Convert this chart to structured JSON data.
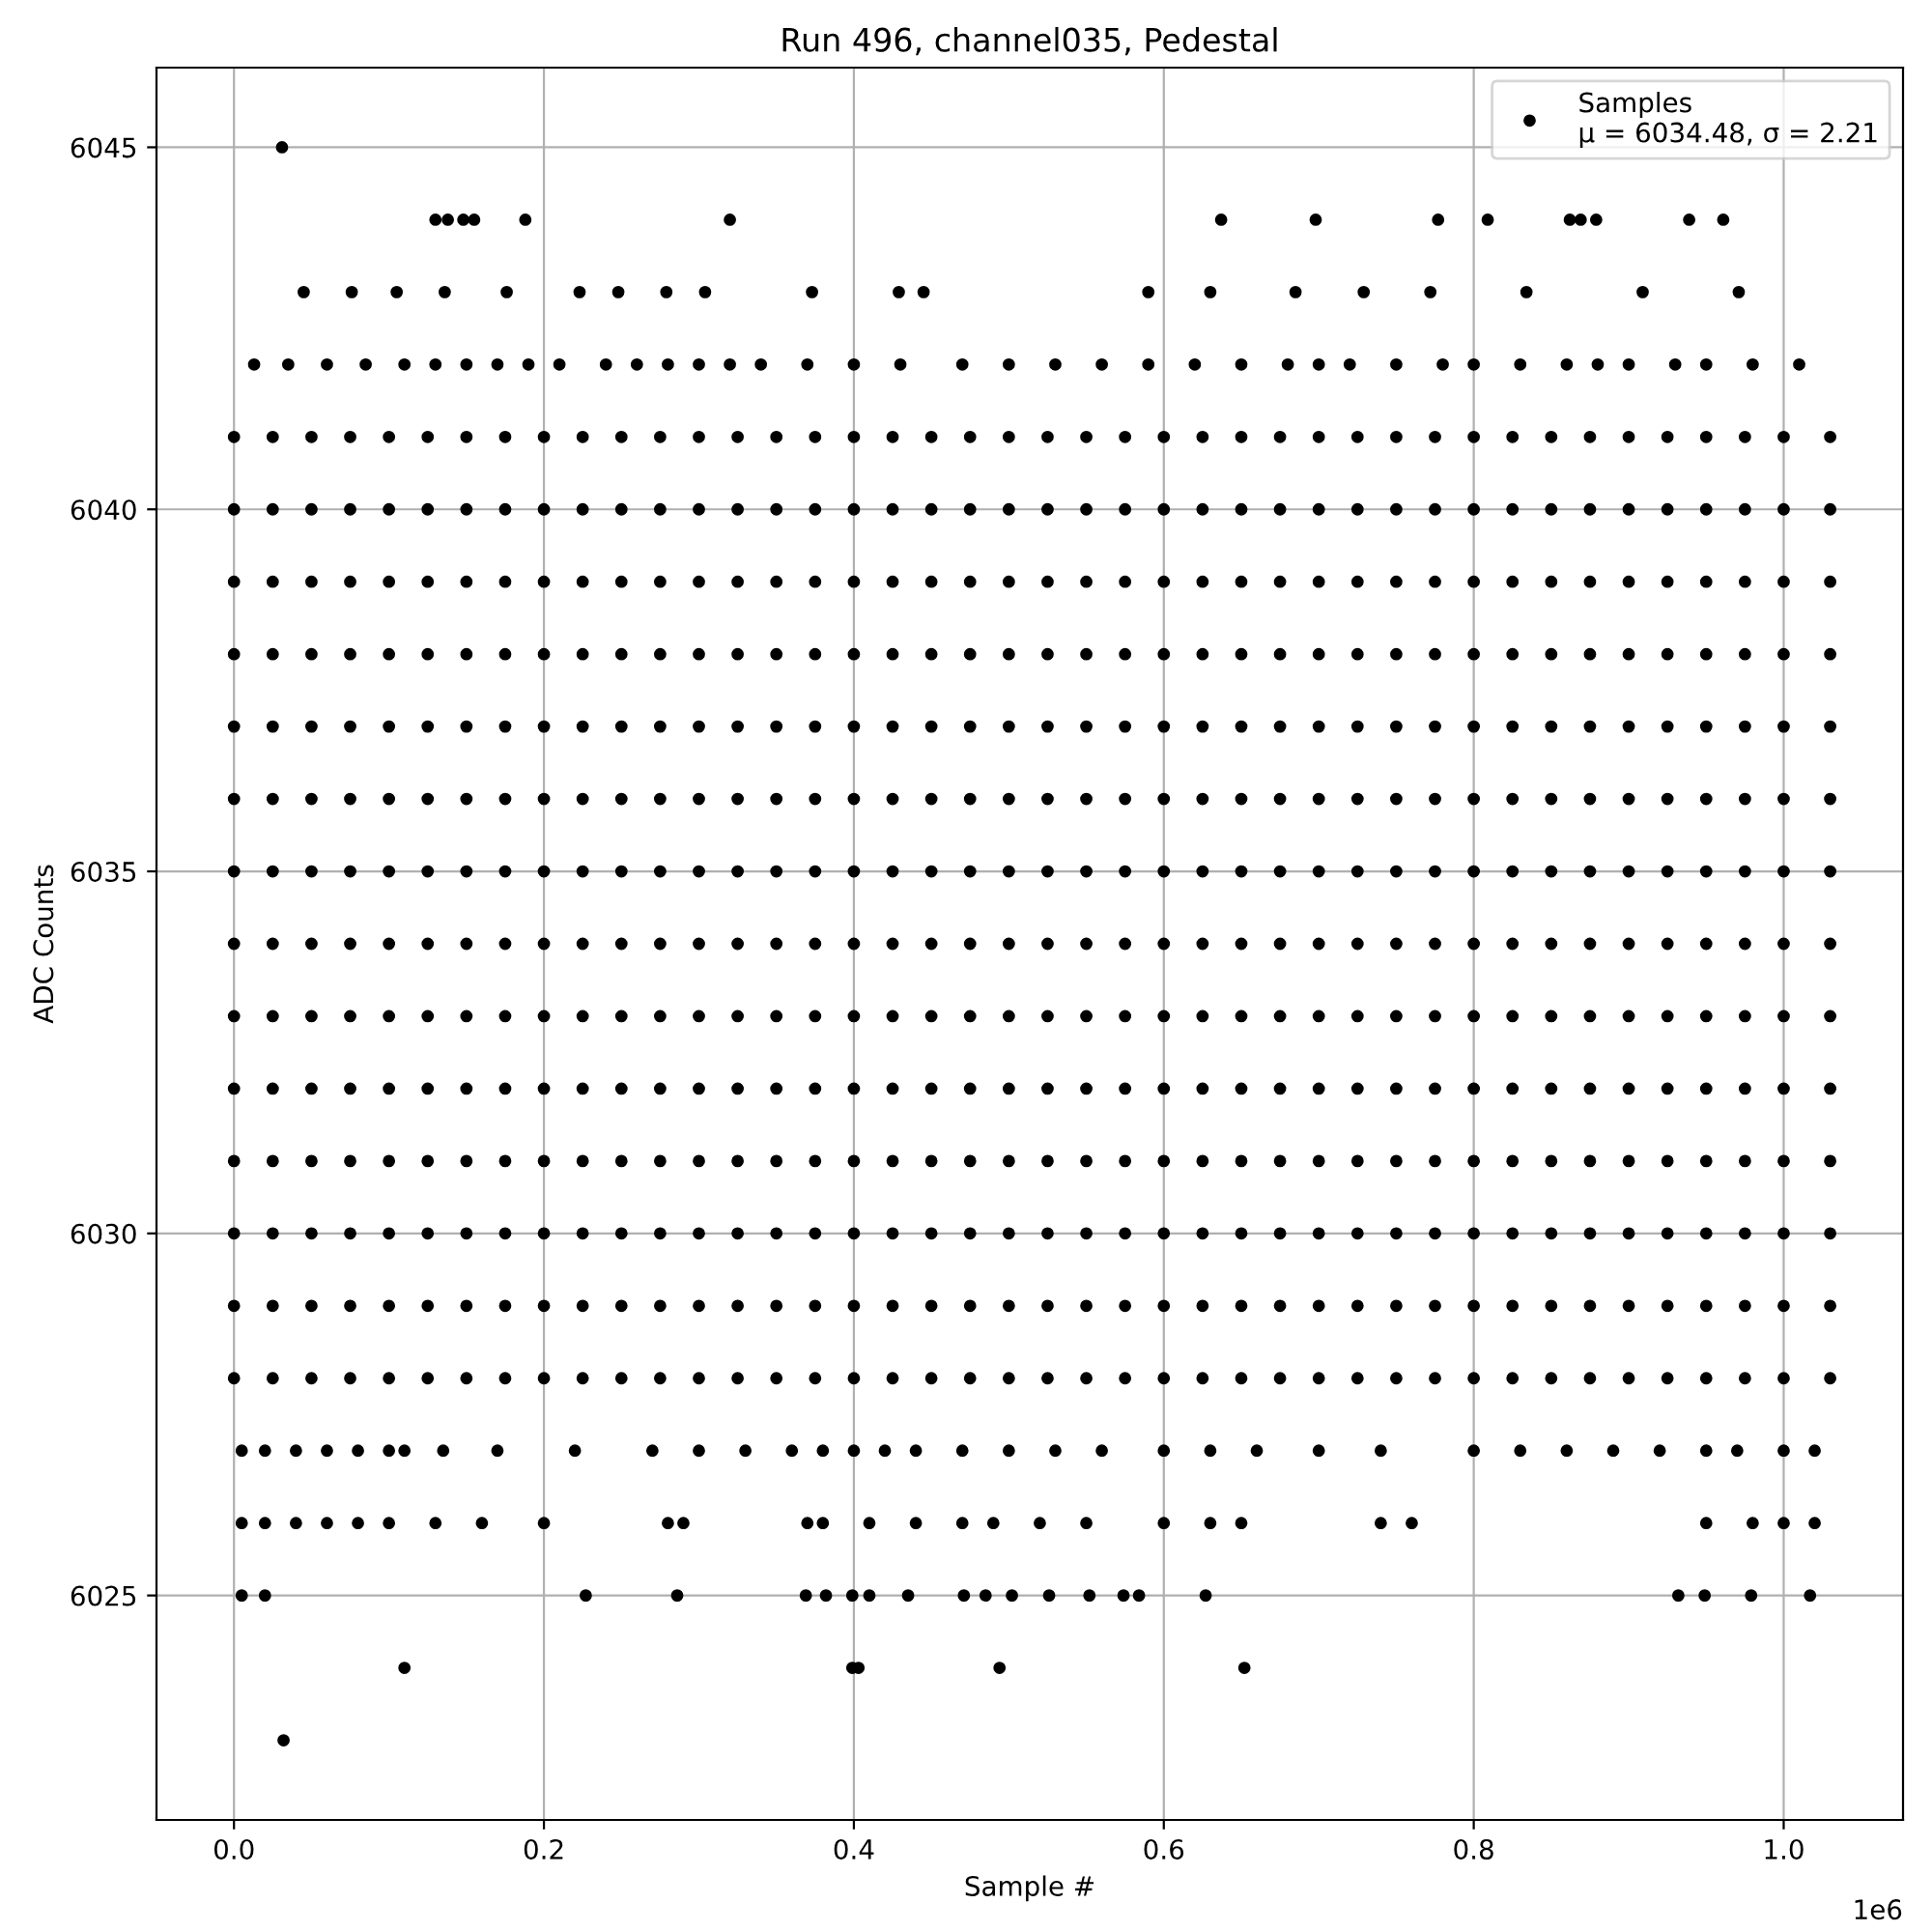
{
  "chart_data": {
    "type": "scatter",
    "title": "Run 496, channel035, Pedestal",
    "xlabel": "Sample #",
    "ylabel": "ADC Counts",
    "annotations": [
      "1e6"
    ],
    "x": [
      0,
      0.025,
      0.05,
      0.075,
      0.1,
      0.125,
      0.15,
      0.175,
      0.2,
      0.225,
      0.25,
      0.275,
      0.3,
      0.325,
      0.35,
      0.375,
      0.4,
      0.425,
      0.45,
      0.475,
      0.5,
      0.525,
      0.55,
      0.575,
      0.6,
      0.625,
      0.65,
      0.675,
      0.7,
      0.725,
      0.75,
      0.775,
      0.8,
      0.825,
      0.85,
      0.875,
      0.9,
      0.925,
      0.95,
      0.975,
      1.0,
      1.03
    ],
    "series": [
      {
        "name": "Samples\nμ = 6034.48, σ = 2.21",
        "color": "#000000",
        "values": [
          6036,
          6036,
          6036,
          6036,
          6036,
          6036,
          6036,
          6036,
          6036,
          6036,
          6036,
          6036,
          6036,
          6036,
          6036,
          6036,
          6036,
          6036,
          6036,
          6036,
          6036,
          6036,
          6036,
          6036,
          6036,
          6036,
          6036,
          6036,
          6036,
          6036,
          6036,
          6036,
          6036,
          6036,
          6036,
          6036,
          6036,
          6036,
          6036,
          6036,
          6036,
          6036
        ]
      },
      {
        "color": "#000000",
        "values": [
          6028,
          6028,
          6028,
          6028,
          6028,
          6028,
          6028,
          6028,
          6028,
          6028,
          6028,
          6028,
          6028,
          6028,
          6028,
          6028,
          6028,
          6028,
          6028,
          6028,
          6028,
          6028,
          6028,
          6028,
          6028,
          6028,
          6028,
          6028,
          6028,
          6028,
          6028,
          6028,
          6028,
          6028,
          6028,
          6028,
          6028,
          6028,
          6028,
          6028,
          6028,
          6028
        ]
      },
      {
        "color": "#000000",
        "values": [
          6029,
          6029,
          6029,
          6029,
          6029,
          6029,
          6029,
          6029,
          6029,
          6029,
          6029,
          6029,
          6029,
          6029,
          6029,
          6029,
          6029,
          6029,
          6029,
          6029,
          6029,
          6029,
          6029,
          6029,
          6029,
          6029,
          6029,
          6029,
          6029,
          6029,
          6029,
          6029,
          6029,
          6029,
          6029,
          6029,
          6029,
          6029,
          6029,
          6029,
          6029,
          6029
        ]
      },
      {
        "color": "#000000",
        "values": [
          6030,
          6030,
          6030,
          6030,
          6030,
          6030,
          6030,
          6030,
          6030,
          6030,
          6030,
          6030,
          6030,
          6030,
          6030,
          6030,
          6030,
          6030,
          6030,
          6030,
          6030,
          6030,
          6030,
          6030,
          6030,
          6030,
          6030,
          6030,
          6030,
          6030,
          6030,
          6030,
          6030,
          6030,
          6030,
          6030,
          6030,
          6030,
          6030,
          6030,
          6030,
          6030
        ]
      },
      {
        "color": "#000000",
        "values": [
          6031,
          6031,
          6031,
          6031,
          6031,
          6031,
          6031,
          6031,
          6031,
          6031,
          6031,
          6031,
          6031,
          6031,
          6031,
          6031,
          6031,
          6031,
          6031,
          6031,
          6031,
          6031,
          6031,
          6031,
          6031,
          6031,
          6031,
          6031,
          6031,
          6031,
          6031,
          6031,
          6031,
          6031,
          6031,
          6031,
          6031,
          6031,
          6031,
          6031,
          6031,
          6031
        ]
      },
      {
        "color": "#000000",
        "values": [
          6032,
          6032,
          6032,
          6032,
          6032,
          6032,
          6032,
          6032,
          6032,
          6032,
          6032,
          6032,
          6032,
          6032,
          6032,
          6032,
          6032,
          6032,
          6032,
          6032,
          6032,
          6032,
          6032,
          6032,
          6032,
          6032,
          6032,
          6032,
          6032,
          6032,
          6032,
          6032,
          6032,
          6032,
          6032,
          6032,
          6032,
          6032,
          6032,
          6032,
          6032,
          6032
        ]
      },
      {
        "color": "#000000",
        "values": [
          6033,
          6033,
          6033,
          6033,
          6033,
          6033,
          6033,
          6033,
          6033,
          6033,
          6033,
          6033,
          6033,
          6033,
          6033,
          6033,
          6033,
          6033,
          6033,
          6033,
          6033,
          6033,
          6033,
          6033,
          6033,
          6033,
          6033,
          6033,
          6033,
          6033,
          6033,
          6033,
          6033,
          6033,
          6033,
          6033,
          6033,
          6033,
          6033,
          6033,
          6033,
          6033
        ]
      },
      {
        "color": "#000000",
        "values": [
          6034,
          6034,
          6034,
          6034,
          6034,
          6034,
          6034,
          6034,
          6034,
          6034,
          6034,
          6034,
          6034,
          6034,
          6034,
          6034,
          6034,
          6034,
          6034,
          6034,
          6034,
          6034,
          6034,
          6034,
          6034,
          6034,
          6034,
          6034,
          6034,
          6034,
          6034,
          6034,
          6034,
          6034,
          6034,
          6034,
          6034,
          6034,
          6034,
          6034,
          6034,
          6034
        ]
      },
      {
        "color": "#000000",
        "values": [
          6035,
          6035,
          6035,
          6035,
          6035,
          6035,
          6035,
          6035,
          6035,
          6035,
          6035,
          6035,
          6035,
          6035,
          6035,
          6035,
          6035,
          6035,
          6035,
          6035,
          6035,
          6035,
          6035,
          6035,
          6035,
          6035,
          6035,
          6035,
          6035,
          6035,
          6035,
          6035,
          6035,
          6035,
          6035,
          6035,
          6035,
          6035,
          6035,
          6035,
          6035,
          6035
        ]
      },
      {
        "color": "#000000",
        "values": [
          6037,
          6037,
          6037,
          6037,
          6037,
          6037,
          6037,
          6037,
          6037,
          6037,
          6037,
          6037,
          6037,
          6037,
          6037,
          6037,
          6037,
          6037,
          6037,
          6037,
          6037,
          6037,
          6037,
          6037,
          6037,
          6037,
          6037,
          6037,
          6037,
          6037,
          6037,
          6037,
          6037,
          6037,
          6037,
          6037,
          6037,
          6037,
          6037,
          6037,
          6037,
          6037
        ]
      },
      {
        "color": "#000000",
        "values": [
          6038,
          6038,
          6038,
          6038,
          6038,
          6038,
          6038,
          6038,
          6038,
          6038,
          6038,
          6038,
          6038,
          6038,
          6038,
          6038,
          6038,
          6038,
          6038,
          6038,
          6038,
          6038,
          6038,
          6038,
          6038,
          6038,
          6038,
          6038,
          6038,
          6038,
          6038,
          6038,
          6038,
          6038,
          6038,
          6038,
          6038,
          6038,
          6038,
          6038,
          6038,
          6038
        ]
      },
      {
        "color": "#000000",
        "values": [
          6039,
          6039,
          6039,
          6039,
          6039,
          6039,
          6039,
          6039,
          6039,
          6039,
          6039,
          6039,
          6039,
          6039,
          6039,
          6039,
          6039,
          6039,
          6039,
          6039,
          6039,
          6039,
          6039,
          6039,
          6039,
          6039,
          6039,
          6039,
          6039,
          6039,
          6039,
          6039,
          6039,
          6039,
          6039,
          6039,
          6039,
          6039,
          6039,
          6039,
          6039,
          6039
        ]
      },
      {
        "color": "#000000",
        "values": [
          6040,
          6040,
          6040,
          6040,
          6040,
          6040,
          6040,
          6040,
          6040,
          6040,
          6040,
          6040,
          6040,
          6040,
          6040,
          6040,
          6040,
          6040,
          6040,
          6040,
          6040,
          6040,
          6040,
          6040,
          6040,
          6040,
          6040,
          6040,
          6040,
          6040,
          6040,
          6040,
          6040,
          6040,
          6040,
          6040,
          6040,
          6040,
          6040,
          6040,
          6040,
          6040
        ]
      },
      {
        "color": "#000000",
        "values": [
          6041,
          6041,
          6041,
          6041,
          6041,
          6041,
          6041,
          6041,
          6041,
          6041,
          6041,
          6041,
          6041,
          6041,
          6041,
          6041,
          6041,
          6041,
          6041,
          6041,
          6041,
          6041,
          6041,
          6041,
          6041,
          6041,
          6041,
          6041,
          6041,
          6041,
          6041,
          6041,
          6041,
          6041,
          6041,
          6041,
          6041,
          6041,
          6041,
          6041,
          6041,
          6041
        ]
      },
      {
        "color": "#000000",
        "x": [
          0.013,
          0.035,
          0.06,
          0.085,
          0.11,
          0.13,
          0.15,
          0.17,
          0.19,
          0.21,
          0.24,
          0.26,
          0.28,
          0.3,
          0.32,
          0.34,
          0.37,
          0.4,
          0.43,
          0.47,
          0.5,
          0.53,
          0.56,
          0.59,
          0.62,
          0.65,
          0.68,
          0.7,
          0.72,
          0.75,
          0.78,
          0.8,
          0.83,
          0.86,
          0.88,
          0.9,
          0.93,
          0.95,
          0.98,
          1.01,
          0.045,
          0.076,
          0.105,
          0.136,
          0.176,
          0.223,
          0.248,
          0.279,
          0.304,
          0.373,
          0.429,
          0.445,
          0.59,
          0.63,
          0.685,
          0.729,
          0.772,
          0.834,
          0.909,
          0.971,
          0.13,
          0.138,
          0.148,
          0.155,
          0.188,
          0.32,
          0.637,
          0.698,
          0.777,
          0.809,
          0.862,
          0.869,
          0.879,
          0.939,
          0.961,
          0.031
        ],
        "values": [
          6042,
          6042,
          6042,
          6042,
          6042,
          6042,
          6042,
          6042,
          6042,
          6042,
          6042,
          6042,
          6042,
          6042,
          6042,
          6042,
          6042,
          6042,
          6042,
          6042,
          6042,
          6042,
          6042,
          6042,
          6042,
          6042,
          6042,
          6042,
          6042,
          6042,
          6042,
          6042,
          6042,
          6042,
          6042,
          6042,
          6042,
          6042,
          6042,
          6042,
          6043,
          6043,
          6043,
          6043,
          6043,
          6043,
          6043,
          6043,
          6043,
          6043,
          6043,
          6043,
          6043,
          6043,
          6043,
          6043,
          6043,
          6043,
          6043,
          6043,
          6044,
          6044,
          6044,
          6044,
          6044,
          6044,
          6044,
          6044,
          6044,
          6044,
          6044,
          6044,
          6044,
          6044,
          6044,
          6045
        ]
      },
      {
        "color": "#000000",
        "x": [
          0.005,
          0.02,
          0.04,
          0.06,
          0.08,
          0.1,
          0.11,
          0.135,
          0.17,
          0.22,
          0.27,
          0.3,
          0.33,
          0.36,
          0.38,
          0.4,
          0.42,
          0.44,
          0.47,
          0.5,
          0.53,
          0.56,
          0.6,
          0.63,
          0.66,
          0.7,
          0.74,
          0.8,
          0.83,
          0.86,
          0.89,
          0.92,
          0.95,
          0.97,
          1.0,
          1.02,
          0.005,
          0.02,
          0.04,
          0.06,
          0.08,
          0.1,
          0.13,
          0.16,
          0.2,
          0.28,
          0.29,
          0.37,
          0.38,
          0.41,
          0.44,
          0.47,
          0.49,
          0.52,
          0.55,
          0.6,
          0.63,
          0.65,
          0.74,
          0.76,
          0.95,
          0.98,
          1.0,
          1.02,
          0.005,
          0.02,
          0.227,
          0.286,
          0.369,
          0.382,
          0.399,
          0.41,
          0.435,
          0.471,
          0.485,
          0.502,
          0.526,
          0.552,
          0.574,
          0.584,
          0.627,
          0.932,
          0.949,
          0.979,
          1.017,
          0.11,
          0.399,
          0.403,
          0.494,
          0.652,
          0.032
        ],
        "values": [
          6027,
          6027,
          6027,
          6027,
          6027,
          6027,
          6027,
          6027,
          6027,
          6027,
          6027,
          6027,
          6027,
          6027,
          6027,
          6027,
          6027,
          6027,
          6027,
          6027,
          6027,
          6027,
          6027,
          6027,
          6027,
          6027,
          6027,
          6027,
          6027,
          6027,
          6027,
          6027,
          6027,
          6027,
          6027,
          6027,
          6026,
          6026,
          6026,
          6026,
          6026,
          6026,
          6026,
          6026,
          6026,
          6026,
          6026,
          6026,
          6026,
          6026,
          6026,
          6026,
          6026,
          6026,
          6026,
          6026,
          6026,
          6026,
          6026,
          6026,
          6026,
          6026,
          6026,
          6026,
          6025,
          6025,
          6025,
          6025,
          6025,
          6025,
          6025,
          6025,
          6025,
          6025,
          6025,
          6025,
          6025,
          6025,
          6025,
          6025,
          6025,
          6025,
          6025,
          6025,
          6025,
          6024,
          6024,
          6024,
          6024,
          6024,
          6023
        ]
      }
    ],
    "xlim": [
      -0.05,
      1.077
    ],
    "xticks": [
      {
        "value": 0,
        "label": "0.0"
      },
      0.2,
      0.4,
      0.6,
      0.8,
      {
        "value": 1,
        "label": "1.0"
      }
    ],
    "ylim": [
      6021.9,
      6046.1
    ],
    "yticks": [
      6025,
      6030,
      6035,
      6040,
      6045
    ],
    "grid": true,
    "legend": "top right",
    "marker": "circle"
  }
}
